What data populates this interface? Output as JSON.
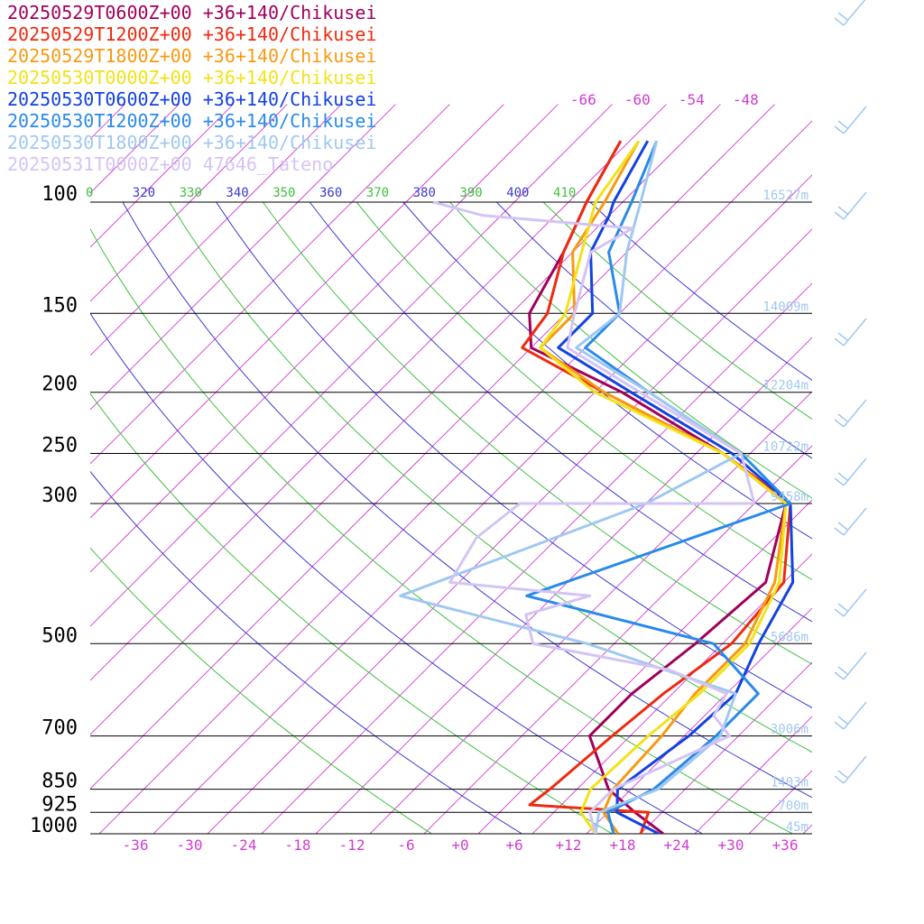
{
  "legend": [
    {
      "label": "20250529T0600Z+00 +36+140/Chikusei",
      "color": "#a0005a"
    },
    {
      "label": "20250529T1200Z+00 +36+140/Chikusei",
      "color": "#ee2a10"
    },
    {
      "label": "20250529T1800Z+00 +36+140/Chikusei",
      "color": "#f79a12"
    },
    {
      "label": "20250530T0000Z+00 +36+140/Chikusei",
      "color": "#f2e21a"
    },
    {
      "label": "20250530T0600Z+00 +36+140/Chikusei",
      "color": "#1242e0"
    },
    {
      "label": "20250530T1200Z+00 +36+140/Chikusei",
      "color": "#2a8ae8"
    },
    {
      "label": "20250530T1800Z+00 +36+140/Chikusei",
      "color": "#a0c8f0"
    },
    {
      "label": "20250531T0000Z+00 47646_Tateno",
      "color": "#d4c4f4"
    }
  ],
  "chart_data": {
    "type": "line",
    "chart_kind": "skew-T log-P diagram",
    "y_axis": {
      "scale": "log",
      "unit": "hPa",
      "range": [
        1000,
        100
      ],
      "ticks": [
        1000,
        925,
        850,
        700,
        500,
        300,
        250,
        200,
        150,
        100
      ],
      "tick_labels": [
        "1000",
        "925",
        "850",
        "700",
        "500",
        "300",
        "250",
        "200",
        "150",
        "100"
      ]
    },
    "x_axis": {
      "unit": "°C",
      "tick_labels": [
        "-36",
        "-30",
        "-24",
        "-18",
        "-12",
        "-6",
        "+0",
        "+6",
        "+12",
        "+18",
        "+24",
        "+30",
        "+36"
      ]
    },
    "isotherm_top_labels": [
      "-66",
      "-60",
      "-54",
      "-48"
    ],
    "theta_labels": [
      {
        "text": "0",
        "color": "#40c040"
      },
      {
        "text": "320",
        "color": "#3b3bd0"
      },
      {
        "text": "330",
        "color": "#40c040"
      },
      {
        "text": "340",
        "color": "#3b3bd0"
      },
      {
        "text": "350",
        "color": "#40c040"
      },
      {
        "text": "360",
        "color": "#3b3bd0"
      },
      {
        "text": "370",
        "color": "#40c040"
      },
      {
        "text": "380",
        "color": "#3b3bd0"
      },
      {
        "text": "390",
        "color": "#40c040"
      },
      {
        "text": "400",
        "color": "#3b3bd0"
      },
      {
        "text": "410",
        "color": "#40c040"
      }
    ],
    "height_labels": [
      "16527m",
      "14009m",
      "12204m",
      "10722m",
      "9458m",
      "5686m",
      "3006m",
      "1403m",
      "700m",
      "45m"
    ],
    "grid": true,
    "legend_position": "top-left",
    "series": [
      {
        "name": "20250529T0600Z+00 +36+140/Chikusei",
        "color": "#a0005a",
        "points": [
          [
            1000,
            22.5
          ],
          [
            925,
            17
          ],
          [
            850,
            11.5
          ],
          [
            700,
            3.5
          ],
          [
            600,
            3.5
          ],
          [
            500,
            5
          ],
          [
            400,
            6
          ],
          [
            300,
            -0.5
          ],
          [
            250,
            -13
          ],
          [
            200,
            -31
          ],
          [
            170,
            -46
          ],
          [
            150,
            -50
          ],
          [
            120,
            -53
          ],
          [
            100,
            -56
          ],
          [
            80,
            -59
          ]
        ]
      },
      {
        "name": "20250529T1200Z+00 +36+140/Chikusei",
        "color": "#ee2a10",
        "points": [
          [
            1000,
            20
          ],
          [
            925,
            18.5
          ],
          [
            900,
            4.5
          ],
          [
            850,
            5
          ],
          [
            700,
            6
          ],
          [
            600,
            7
          ],
          [
            500,
            9
          ],
          [
            400,
            8
          ],
          [
            300,
            0
          ],
          [
            250,
            -13
          ],
          [
            200,
            -33
          ],
          [
            170,
            -47
          ],
          [
            150,
            -48
          ],
          [
            120,
            -53
          ],
          [
            100,
            -56
          ],
          [
            80,
            -59
          ]
        ]
      },
      {
        "name": "20250529T1800Z+00 +36+140/Chikusei",
        "color": "#f79a12",
        "points": [
          [
            1000,
            17.5
          ],
          [
            925,
            13.5
          ],
          [
            850,
            12
          ],
          [
            700,
            11.5
          ],
          [
            600,
            10.5
          ],
          [
            500,
            10.5
          ],
          [
            400,
            7
          ],
          [
            300,
            -0.5
          ],
          [
            250,
            -13
          ],
          [
            200,
            -33
          ],
          [
            170,
            -45
          ],
          [
            150,
            -45
          ],
          [
            120,
            -52
          ],
          [
            100,
            -54
          ],
          [
            80,
            -57
          ]
        ]
      },
      {
        "name": "20250530T0000Z+00 +36+140/Chikusei",
        "color": "#f2e21a",
        "points": [
          [
            1000,
            15
          ],
          [
            925,
            11
          ],
          [
            850,
            9.5
          ],
          [
            700,
            10
          ],
          [
            600,
            11
          ],
          [
            500,
            11
          ],
          [
            400,
            7.5
          ],
          [
            300,
            -0.5
          ],
          [
            250,
            -13
          ],
          [
            200,
            -34
          ],
          [
            170,
            -45
          ],
          [
            150,
            -46
          ],
          [
            120,
            -51
          ],
          [
            100,
            -55
          ],
          [
            80,
            -57
          ]
        ]
      },
      {
        "name": "20250530T0600Z+00 +36+140/Chikusei",
        "color": "#1242e0",
        "points": [
          [
            1000,
            22
          ],
          [
            925,
            15
          ],
          [
            850,
            12.5
          ],
          [
            700,
            14.5
          ],
          [
            600,
            15
          ],
          [
            500,
            12
          ],
          [
            400,
            9
          ],
          [
            300,
            0
          ],
          [
            250,
            -12
          ],
          [
            200,
            -30
          ],
          [
            170,
            -43
          ],
          [
            150,
            -43
          ],
          [
            120,
            -50
          ],
          [
            105,
            -52
          ],
          [
            100,
            -53
          ],
          [
            80,
            -56
          ]
        ]
      },
      {
        "name": "20250530T1200Z+00 +36+140/Chikusei",
        "color": "#2a8ae8",
        "points": [
          [
            1000,
            17
          ],
          [
            925,
            14
          ],
          [
            850,
            16.5
          ],
          [
            700,
            17.5
          ],
          [
            600,
            17.5
          ],
          [
            500,
            7
          ],
          [
            420,
            -19
          ],
          [
            300,
            0
          ],
          [
            250,
            -11
          ],
          [
            200,
            -28
          ],
          [
            170,
            -40
          ],
          [
            150,
            -40
          ],
          [
            120,
            -48
          ],
          [
            100,
            -51
          ],
          [
            80,
            -55
          ]
        ]
      },
      {
        "name": "20250530T1800Z+00 +36+140/Chikusei",
        "color": "#a0c8f0",
        "points": [
          [
            1000,
            15
          ],
          [
            925,
            13
          ],
          [
            850,
            17
          ],
          [
            700,
            18
          ],
          [
            600,
            15
          ],
          [
            500,
            -7
          ],
          [
            420,
            -33
          ],
          [
            300,
            -16
          ],
          [
            250,
            -11
          ],
          [
            200,
            -28
          ],
          [
            170,
            -41
          ],
          [
            150,
            -40
          ],
          [
            120,
            -46
          ],
          [
            100,
            -50
          ],
          [
            80,
            -55
          ]
        ]
      },
      {
        "name": "20250531T0000Z+00 47646_Tateno",
        "color": "#d4c4f4",
        "points": [
          [
            1000,
            15
          ],
          [
            925,
            12
          ],
          [
            850,
            12
          ],
          [
            700,
            19
          ],
          [
            650,
            15
          ],
          [
            600,
            14
          ],
          [
            550,
            5
          ],
          [
            500,
            -13
          ],
          [
            450,
            -17
          ],
          [
            420,
            -12
          ],
          [
            400,
            -29
          ],
          [
            340,
            -31
          ],
          [
            300,
            -30
          ],
          [
            300,
            -4
          ],
          [
            250,
            -11
          ],
          [
            200,
            -29
          ],
          [
            170,
            -42
          ],
          [
            150,
            -45
          ],
          [
            120,
            -50
          ],
          [
            110,
            -48
          ],
          [
            105,
            -66
          ],
          [
            100,
            -73
          ]
        ]
      }
    ]
  }
}
